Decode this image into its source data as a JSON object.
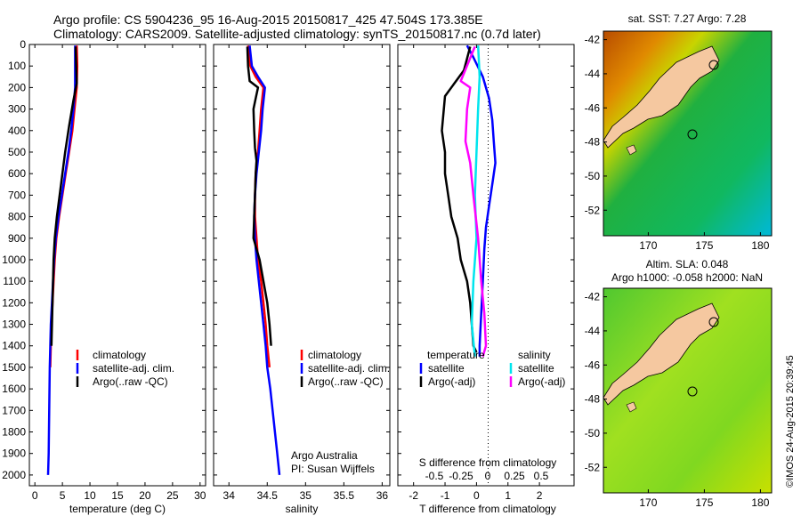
{
  "header": {
    "line1": "Argo profile: CS 5904236_95 16-Aug-2015 20150817_425 47.504S 173.385E",
    "line2": "Climatology: CARS2009. Satellite-adjusted climatology: synTS_20150817.nc (0.7d later)"
  },
  "colors": {
    "climatology": "#ff0000",
    "satellite": "#0000ff",
    "argo": "#000000",
    "sat_salinity": "#00e5ee",
    "argo_salinity_adj": "#ff00ff",
    "land": "#f5c8a0"
  },
  "footer_credit": "©IMOS 24-Aug-2015 20:39:45",
  "chart_data": [
    {
      "type": "line",
      "name_id": "temperature-profile",
      "xlabel": "temperature (deg C)",
      "xlim": [
        -1,
        31
      ],
      "ylim": [
        2050,
        0
      ],
      "xticks": [
        0,
        5,
        10,
        15,
        20,
        25,
        30
      ],
      "yticks": [
        0,
        100,
        200,
        300,
        400,
        500,
        600,
        700,
        800,
        900,
        1000,
        1100,
        1200,
        1300,
        1400,
        1500,
        1600,
        1700,
        1800,
        1900,
        2000
      ],
      "legend": [
        "climatology",
        "satellite-adj. clim.",
        "Argo(..raw -QC)"
      ],
      "series": [
        {
          "name": "climatology",
          "color": "#ff0000",
          "points": [
            [
              7.6,
              5
            ],
            [
              7.7,
              100
            ],
            [
              7.6,
              200
            ],
            [
              7.2,
              300
            ],
            [
              6.8,
              400
            ],
            [
              6.2,
              500
            ],
            [
              5.6,
              600
            ],
            [
              5.0,
              700
            ],
            [
              4.4,
              800
            ],
            [
              3.9,
              900
            ],
            [
              3.6,
              1000
            ],
            [
              3.4,
              1100
            ],
            [
              3.2,
              1200
            ],
            [
              3.0,
              1300
            ],
            [
              2.9,
              1400
            ],
            [
              2.8,
              1500
            ]
          ]
        },
        {
          "name": "satellite-adj. clim.",
          "color": "#0000ff",
          "points": [
            [
              7.3,
              5
            ],
            [
              7.3,
              100
            ],
            [
              7.3,
              200
            ],
            [
              7.0,
              300
            ],
            [
              6.6,
              400
            ],
            [
              6.1,
              500
            ],
            [
              5.5,
              600
            ],
            [
              4.9,
              700
            ],
            [
              4.3,
              800
            ],
            [
              3.8,
              900
            ],
            [
              3.5,
              1000
            ],
            [
              3.3,
              1100
            ],
            [
              3.1,
              1200
            ],
            [
              2.9,
              1300
            ],
            [
              2.8,
              1400
            ],
            [
              2.7,
              1500
            ],
            [
              2.6,
              1700
            ],
            [
              2.5,
              1900
            ],
            [
              2.4,
              2000
            ]
          ]
        },
        {
          "name": "Argo(..raw -QC)",
          "color": "#000000",
          "points": [
            [
              7.4,
              10
            ],
            [
              7.5,
              100
            ],
            [
              7.6,
              180
            ],
            [
              7.0,
              260
            ],
            [
              6.2,
              380
            ],
            [
              5.5,
              500
            ],
            [
              4.9,
              620
            ],
            [
              4.4,
              720
            ],
            [
              4.0,
              800
            ],
            [
              3.6,
              900
            ],
            [
              3.4,
              1000
            ],
            [
              3.3,
              1100
            ],
            [
              3.2,
              1200
            ],
            [
              3.1,
              1300
            ],
            [
              3.0,
              1400
            ]
          ]
        }
      ]
    },
    {
      "type": "line",
      "name_id": "salinity-profile",
      "xlabel": "salinity",
      "xlim": [
        33.8,
        36.1
      ],
      "ylim": [
        2050,
        0
      ],
      "xticks": [
        34,
        34.5,
        35,
        35.5,
        36
      ],
      "legend": [
        "climatology",
        "satellite-adj. clim.",
        "Argo(..raw -QC)"
      ],
      "annotation": [
        "Argo Australia",
        "PI: Susan Wijffels"
      ],
      "series": [
        {
          "name": "climatology",
          "color": "#ff0000",
          "points": [
            [
              34.25,
              5
            ],
            [
              34.28,
              100
            ],
            [
              34.35,
              150
            ],
            [
              34.45,
              200
            ],
            [
              34.42,
              300
            ],
            [
              34.4,
              400
            ],
            [
              34.38,
              500
            ],
            [
              34.35,
              600
            ],
            [
              34.34,
              700
            ],
            [
              34.34,
              800
            ],
            [
              34.36,
              900
            ],
            [
              34.38,
              1000
            ],
            [
              34.42,
              1100
            ],
            [
              34.45,
              1200
            ],
            [
              34.48,
              1300
            ],
            [
              34.5,
              1400
            ],
            [
              34.53,
              1500
            ]
          ]
        },
        {
          "name": "satellite-adj. clim.",
          "color": "#0000ff",
          "points": [
            [
              34.27,
              5
            ],
            [
              34.3,
              100
            ],
            [
              34.38,
              150
            ],
            [
              34.47,
              200
            ],
            [
              34.44,
              300
            ],
            [
              34.42,
              400
            ],
            [
              34.39,
              500
            ],
            [
              34.36,
              600
            ],
            [
              34.34,
              700
            ],
            [
              34.33,
              800
            ],
            [
              34.34,
              900
            ],
            [
              34.36,
              1000
            ],
            [
              34.39,
              1100
            ],
            [
              34.42,
              1200
            ],
            [
              34.45,
              1300
            ],
            [
              34.48,
              1400
            ],
            [
              34.5,
              1500
            ],
            [
              34.54,
              1600
            ],
            [
              34.57,
              1700
            ],
            [
              34.6,
              1800
            ],
            [
              34.63,
              1900
            ],
            [
              34.66,
              2000
            ]
          ]
        },
        {
          "name": "Argo(..raw -QC)",
          "color": "#000000",
          "points": [
            [
              34.24,
              10
            ],
            [
              34.25,
              100
            ],
            [
              34.27,
              170
            ],
            [
              34.38,
              200
            ],
            [
              34.35,
              250
            ],
            [
              34.32,
              300
            ],
            [
              34.33,
              400
            ],
            [
              34.34,
              480
            ],
            [
              34.36,
              540
            ],
            [
              34.35,
              600
            ],
            [
              34.34,
              700
            ],
            [
              34.33,
              800
            ],
            [
              34.32,
              900
            ],
            [
              34.4,
              1000
            ],
            [
              34.45,
              1100
            ],
            [
              34.5,
              1200
            ],
            [
              34.53,
              1300
            ],
            [
              34.55,
              1400
            ]
          ]
        }
      ]
    },
    {
      "type": "line",
      "name_id": "difference-profile",
      "xlabel": "T difference from climatology",
      "xlim": [
        -2.5,
        3.1
      ],
      "ylim": [
        2050,
        0
      ],
      "xticks": [
        -2,
        -1,
        0,
        1,
        2
      ],
      "top_axis_label": "S difference from climatology",
      "top_ticks": [
        "-0.5",
        "-0.25",
        "0",
        "0.25",
        "0.5"
      ],
      "legend_temperature": {
        "title": "temperature",
        "entries": [
          "satellite",
          "Argo(-adj)"
        ]
      },
      "legend_salinity": {
        "title": "salinity",
        "entries": [
          "satellite",
          "Argo(-adj)"
        ]
      },
      "series": [
        {
          "name": "temperature satellite",
          "color": "#0000ff",
          "points": [
            [
              -0.3,
              5
            ],
            [
              -0.1,
              60
            ],
            [
              0.2,
              150
            ],
            [
              0.4,
              250
            ],
            [
              0.5,
              350
            ],
            [
              0.55,
              450
            ],
            [
              0.6,
              550
            ],
            [
              0.5,
              650
            ],
            [
              0.4,
              750
            ],
            [
              0.3,
              850
            ],
            [
              0.25,
              950
            ],
            [
              0.2,
              1100
            ],
            [
              0.15,
              1250
            ],
            [
              0.1,
              1400
            ],
            [
              0.1,
              1450
            ]
          ]
        },
        {
          "name": "temperature Argo(-adj)",
          "color": "#000000",
          "points": [
            [
              -0.2,
              10
            ],
            [
              -0.4,
              120
            ],
            [
              -1.0,
              240
            ],
            [
              -1.1,
              400
            ],
            [
              -1.0,
              500
            ],
            [
              -1.0,
              600
            ],
            [
              -0.9,
              700
            ],
            [
              -0.8,
              800
            ],
            [
              -0.6,
              900
            ],
            [
              -0.5,
              1000
            ],
            [
              -0.3,
              1100
            ],
            [
              -0.2,
              1200
            ],
            [
              -0.15,
              1300
            ],
            [
              -0.1,
              1400
            ],
            [
              0.0,
              1430
            ]
          ]
        },
        {
          "name": "salinity satellite",
          "color": "#00e5ee",
          "points": [
            [
              0.05,
              5
            ],
            [
              0.1,
              150
            ],
            [
              0.05,
              300
            ],
            [
              0.0,
              500
            ],
            [
              -0.05,
              700
            ],
            [
              0.0,
              900
            ],
            [
              -0.1,
              1100
            ],
            [
              -0.15,
              1300
            ],
            [
              -0.05,
              1450
            ]
          ]
        },
        {
          "name": "salinity Argo(-adj)",
          "color": "#ff00ff",
          "points": [
            [
              -0.05,
              10
            ],
            [
              -0.5,
              170
            ],
            [
              -0.2,
              200
            ],
            [
              -0.3,
              300
            ],
            [
              -0.35,
              450
            ],
            [
              -0.2,
              550
            ],
            [
              -0.1,
              700
            ],
            [
              0.05,
              900
            ],
            [
              0.15,
              1100
            ],
            [
              0.25,
              1250
            ],
            [
              0.3,
              1400
            ],
            [
              0.2,
              1450
            ]
          ]
        }
      ]
    },
    {
      "type": "heatmap",
      "name_id": "sst-map",
      "title": "sat. SST: 7.27 Argo: 7.28",
      "xlim": [
        166,
        181
      ],
      "ylim": [
        -53.5,
        -41.5
      ],
      "xticks": [
        170,
        175,
        180
      ],
      "yticks": [
        -42,
        -44,
        -46,
        -48,
        -50,
        -52
      ],
      "ytick_labels": [
        "-42",
        "-44",
        "-46",
        "-48",
        "-50",
        "-52"
      ],
      "argo_position": [
        173.385,
        -47.504
      ]
    },
    {
      "type": "heatmap",
      "name_id": "sla-map",
      "title": [
        "Altim. SLA: 0.048",
        "Argo h1000: -0.058 h2000: NaN"
      ],
      "xlim": [
        166,
        181
      ],
      "ylim": [
        -53.5,
        -41.5
      ],
      "xticks": [
        170,
        175,
        180
      ],
      "yticks": [
        -42,
        -44,
        -46,
        -48,
        -50,
        -52
      ],
      "ytick_labels": [
        "-42",
        "-44",
        "-46",
        "-48",
        "-50",
        "-52"
      ],
      "argo_position": [
        173.385,
        -47.504
      ]
    }
  ]
}
